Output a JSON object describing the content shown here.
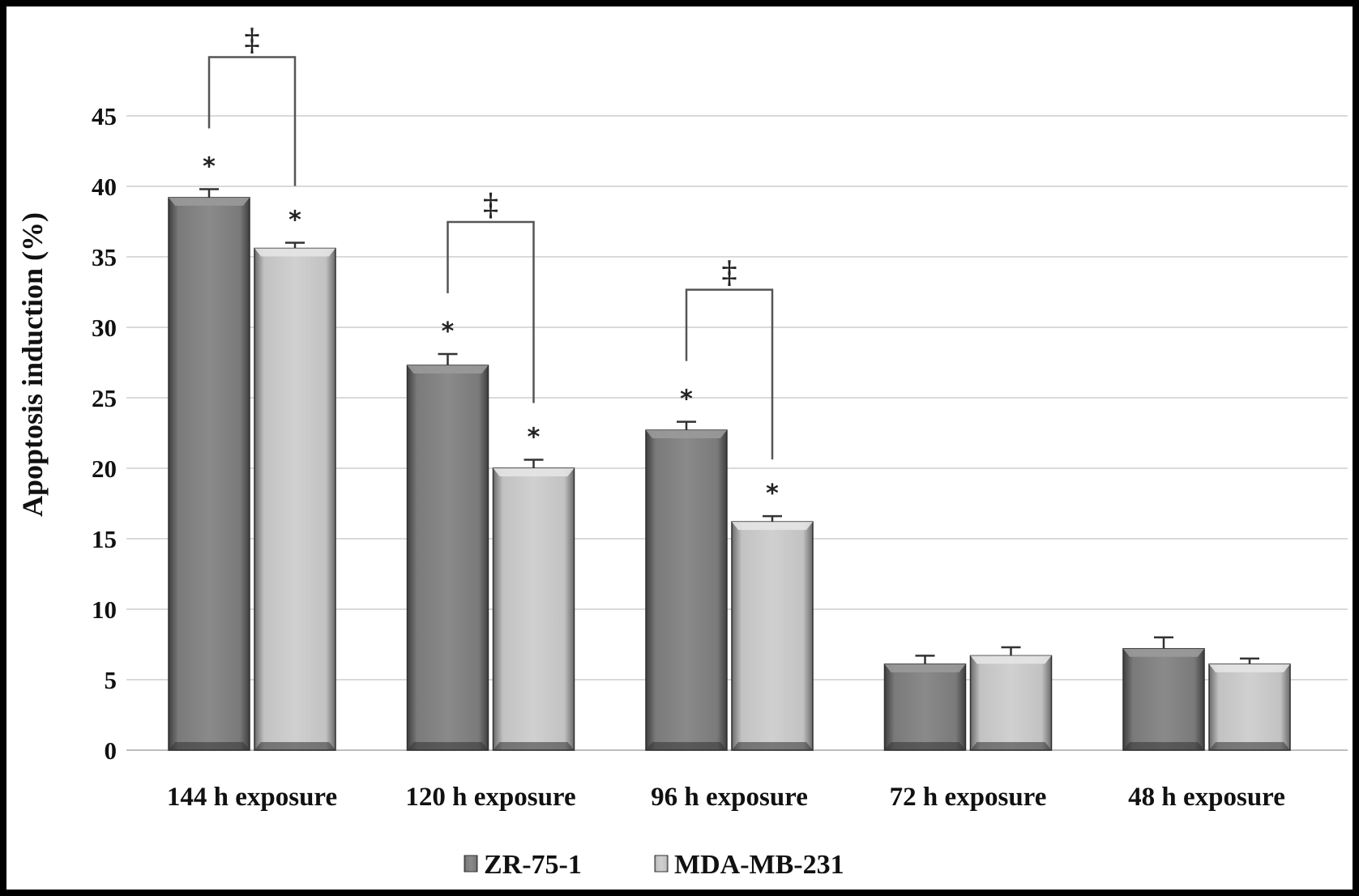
{
  "chart_data": {
    "type": "bar",
    "title": "",
    "xlabel": "",
    "ylabel": "Apoptosis induction (%)",
    "ylim": [
      0,
      45
    ],
    "yticks": [
      0,
      5,
      10,
      15,
      20,
      25,
      30,
      35,
      40,
      45
    ],
    "grid": true,
    "legend_position": "bottom",
    "categories": [
      "144 h exposure",
      "120 h exposure",
      "96 h exposure",
      "72 h exposure",
      "48 h exposure"
    ],
    "series": [
      {
        "name": "ZR-75-1",
        "color": "#6e6e6e",
        "values": [
          39.2,
          27.3,
          22.7,
          6.1,
          7.2
        ],
        "errors": [
          0.6,
          0.8,
          0.6,
          0.6,
          0.8
        ],
        "significance": [
          "*",
          "*",
          "*",
          "",
          ""
        ]
      },
      {
        "name": "MDA-MB-231",
        "color": "#b9b9b9",
        "values": [
          35.6,
          20.0,
          16.2,
          6.7,
          6.1
        ],
        "errors": [
          0.4,
          0.6,
          0.4,
          0.6,
          0.4
        ],
        "significance": [
          "*",
          "*",
          "*",
          "",
          ""
        ]
      }
    ],
    "comparisons": [
      {
        "category_index": 0,
        "symbol": "‡"
      },
      {
        "category_index": 1,
        "symbol": "‡"
      },
      {
        "category_index": 2,
        "symbol": "‡"
      }
    ]
  }
}
